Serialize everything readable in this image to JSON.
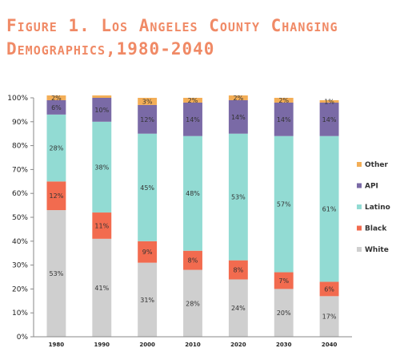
{
  "chart_data": {
    "type": "bar",
    "stacked": true,
    "title": "Figure 1. Los Angeles County Changing Demographics,1980-2040",
    "categories": [
      "1980",
      "1990",
      "2000",
      "2010",
      "2020",
      "2030",
      "2040"
    ],
    "ylim": [
      0,
      100
    ],
    "y_ticks": [
      "0%",
      "10%",
      "20%",
      "30%",
      "40%",
      "50%",
      "60%",
      "70%",
      "80%",
      "90%",
      "100%"
    ],
    "grid": false,
    "legend_position": "right",
    "series": [
      {
        "name": "White",
        "color": "#cfcfcf",
        "values": [
          53,
          41,
          31,
          28,
          24,
          20,
          17
        ],
        "labels": [
          "53%",
          "41%",
          "31%",
          "28%",
          "24%",
          "20%",
          "17%"
        ]
      },
      {
        "name": "Black",
        "color": "#f26b4f",
        "values": [
          12,
          11,
          9,
          8,
          8,
          7,
          6
        ],
        "labels": [
          "12%",
          "11%",
          "9%",
          "8%",
          "8%",
          "7%",
          "6%"
        ]
      },
      {
        "name": "Latino",
        "color": "#92dbd3",
        "values": [
          28,
          38,
          45,
          48,
          53,
          57,
          61
        ],
        "labels": [
          "28%",
          "38%",
          "45%",
          "48%",
          "53%",
          "57%",
          "61%"
        ]
      },
      {
        "name": "API",
        "color": "#7a6aa6",
        "values": [
          6,
          10,
          12,
          14,
          14,
          14,
          14
        ],
        "labels": [
          "6%",
          "10%",
          "12%",
          "14%",
          "14%",
          "14%",
          "14%"
        ]
      },
      {
        "name": "Other",
        "color": "#f3ae57",
        "values": [
          2,
          1,
          3,
          2,
          2,
          2,
          1
        ],
        "labels": [
          "2%",
          "",
          "3%",
          "2%",
          "2%",
          "2%",
          "1%"
        ]
      }
    ],
    "legend_order": [
      "Other",
      "API",
      "Latino",
      "Black",
      "White"
    ]
  }
}
